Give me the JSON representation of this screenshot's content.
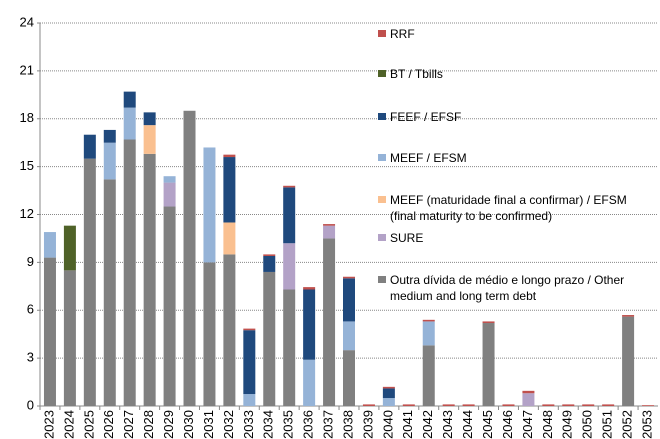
{
  "chart_data": {
    "type": "stacked-bar",
    "categories": [
      "2023",
      "2024",
      "2025",
      "2026",
      "2027",
      "2028",
      "2029",
      "2030",
      "2031",
      "2032",
      "2033",
      "2034",
      "2035",
      "2036",
      "2037",
      "2038",
      "2039",
      "2040",
      "2041",
      "2042",
      "2043",
      "2044",
      "2045",
      "2046",
      "2047",
      "2048",
      "2049",
      "2050",
      "2051",
      "2052",
      "2053"
    ],
    "series": [
      {
        "name": "Outra dívida de médio e longo prazo / Other medium and long term debt",
        "color": "#808080",
        "values": [
          9.3,
          8.5,
          15.5,
          14.2,
          16.7,
          15.8,
          12.5,
          18.5,
          9.0,
          9.5,
          0,
          8.4,
          7.3,
          0,
          10.5,
          3.5,
          0,
          0,
          0,
          3.8,
          0,
          0,
          5.2,
          0,
          0,
          0,
          0,
          0,
          0,
          5.6,
          0
        ]
      },
      {
        "name": "SURE",
        "color": "#b3a2c7",
        "values": [
          0,
          0,
          0,
          0,
          0,
          0,
          1.5,
          0,
          0,
          0,
          0,
          0,
          2.9,
          0,
          0.8,
          0,
          0,
          0,
          0,
          0,
          0,
          0,
          0,
          0,
          0.8,
          0,
          0,
          0,
          0,
          0,
          0
        ]
      },
      {
        "name": "MEEF (maturidade final a confirmar) / EFSM (final maturity to be confirmed)",
        "color": "#fac090",
        "values": [
          0,
          0,
          0,
          0,
          0,
          1.8,
          0,
          0,
          0,
          2.0,
          0,
          0,
          0,
          0,
          0,
          0,
          0,
          0,
          0,
          0,
          0,
          0,
          0,
          0,
          0,
          0,
          0,
          0,
          0,
          0,
          0
        ]
      },
      {
        "name": "MEEF / EFSM",
        "color": "#95b3d7",
        "values": [
          1.6,
          0,
          0,
          2.3,
          2.0,
          0,
          0.4,
          0,
          7.2,
          0,
          0.75,
          0,
          0,
          2.9,
          0,
          1.8,
          0,
          0.5,
          0,
          1.5,
          0,
          0,
          0,
          0,
          0,
          0,
          0,
          0,
          0,
          0,
          0
        ]
      },
      {
        "name": "FEEF / EFSF",
        "color": "#1f497d",
        "values": [
          0,
          0,
          1.5,
          0.8,
          1.0,
          0.8,
          0,
          0,
          0,
          4.1,
          4.0,
          1.0,
          3.5,
          4.4,
          0,
          2.7,
          0,
          0.6,
          0,
          0,
          0,
          0,
          0,
          0,
          0,
          0,
          0,
          0,
          0,
          0,
          0
        ]
      },
      {
        "name": "BT / Tbills",
        "color": "#4f6228",
        "values": [
          0,
          2.8,
          0,
          0,
          0,
          0,
          0,
          0,
          0,
          0,
          0,
          0,
          0,
          0,
          0,
          0,
          0,
          0,
          0,
          0,
          0,
          0,
          0,
          0,
          0,
          0,
          0,
          0,
          0,
          0,
          0
        ]
      },
      {
        "name": "RRF",
        "color": "#c0504d",
        "values": [
          0,
          0,
          0,
          0,
          0,
          0,
          0,
          0,
          0,
          0.15,
          0.1,
          0.1,
          0.1,
          0.15,
          0.1,
          0.1,
          0.1,
          0.1,
          0.1,
          0.1,
          0.1,
          0.1,
          0.1,
          0.1,
          0.15,
          0.1,
          0.1,
          0.1,
          0.1,
          0.1,
          0.05
        ]
      }
    ],
    "ylim": [
      0,
      24
    ],
    "yticks": [
      0,
      3,
      6,
      9,
      12,
      15,
      18,
      21,
      24
    ],
    "grid": true
  }
}
